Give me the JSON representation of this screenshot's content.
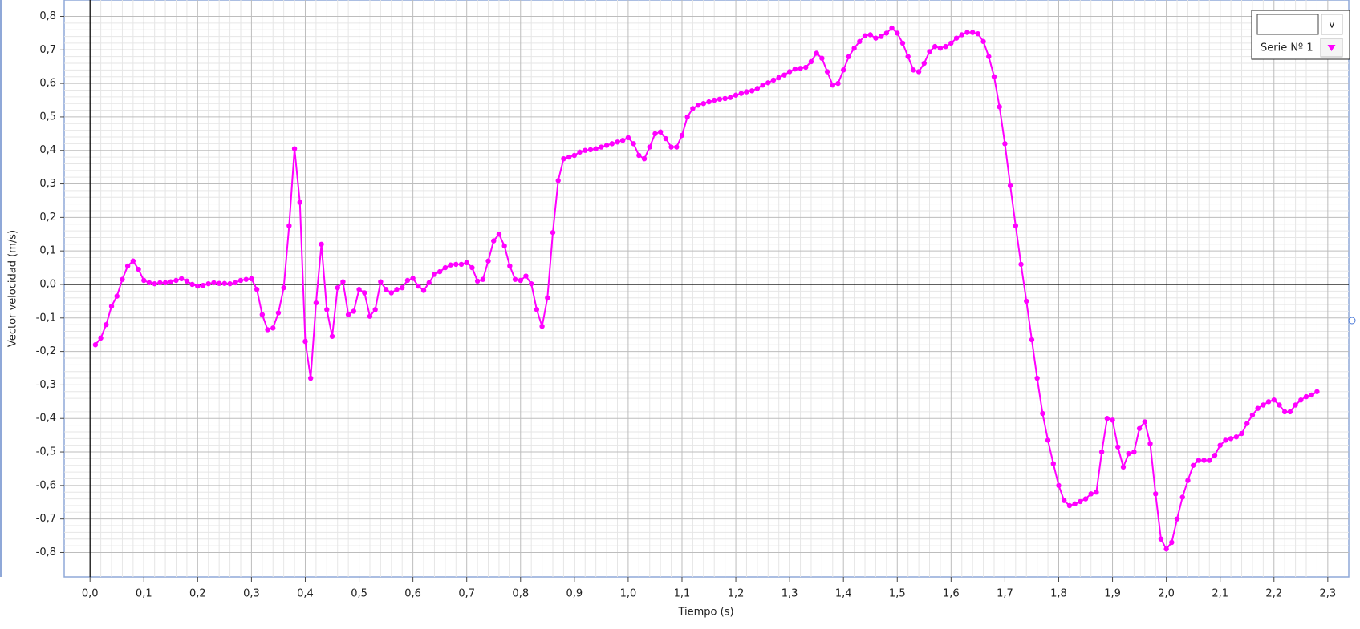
{
  "chart_data": {
    "type": "line",
    "x_label": "Tiempo (s)",
    "y_label": "Vector velocidad (m/s)",
    "xlim": [
      -0.048,
      2.339
    ],
    "ylim": [
      -0.873,
      0.849
    ],
    "grid": true,
    "xticks": [
      {
        "value": 0,
        "label": "0,0"
      },
      {
        "value": 0.1,
        "label": "0,1"
      },
      {
        "value": 0.2,
        "label": "0,2"
      },
      {
        "value": 0.3,
        "label": "0,3"
      },
      {
        "value": 0.4,
        "label": "0,4"
      },
      {
        "value": 0.5,
        "label": "0,5"
      },
      {
        "value": 0.6,
        "label": "0,6"
      },
      {
        "value": 0.7,
        "label": "0,7"
      },
      {
        "value": 0.8,
        "label": "0,8"
      },
      {
        "value": 0.9,
        "label": "0,9"
      },
      {
        "value": 1.0,
        "label": "1,0"
      },
      {
        "value": 1.1,
        "label": "1,1"
      },
      {
        "value": 1.2,
        "label": "1,2"
      },
      {
        "value": 1.3,
        "label": "1,3"
      },
      {
        "value": 1.4,
        "label": "1,4"
      },
      {
        "value": 1.5,
        "label": "1,5"
      },
      {
        "value": 1.6,
        "label": "1,6"
      },
      {
        "value": 1.7,
        "label": "1,7"
      },
      {
        "value": 1.8,
        "label": "1,8"
      },
      {
        "value": 1.9,
        "label": "1,9"
      },
      {
        "value": 2.0,
        "label": "2,0"
      },
      {
        "value": 2.1,
        "label": "2,1"
      },
      {
        "value": 2.2,
        "label": "2,2"
      },
      {
        "value": 2.3,
        "label": "2,3"
      }
    ],
    "yticks": [
      {
        "value": -0.8,
        "label": "-0,8"
      },
      {
        "value": -0.7,
        "label": "-0,7"
      },
      {
        "value": -0.6,
        "label": "-0,6"
      },
      {
        "value": -0.5,
        "label": "-0,5"
      },
      {
        "value": -0.4,
        "label": "-0,4"
      },
      {
        "value": -0.3,
        "label": "-0,3"
      },
      {
        "value": -0.2,
        "label": "-0,2"
      },
      {
        "value": -0.1,
        "label": "-0,1"
      },
      {
        "value": 0,
        "label": "0,0"
      },
      {
        "value": 0.1,
        "label": "0,1"
      },
      {
        "value": 0.2,
        "label": "0,2"
      },
      {
        "value": 0.3,
        "label": "0,3"
      },
      {
        "value": 0.4,
        "label": "0,4"
      },
      {
        "value": 0.5,
        "label": "0,5"
      },
      {
        "value": 0.6,
        "label": "0,6"
      },
      {
        "value": 0.7,
        "label": "0,7"
      },
      {
        "value": 0.8,
        "label": "0,8"
      }
    ],
    "x": [
      0.01,
      0.02,
      0.03,
      0.04,
      0.05,
      0.06,
      0.07,
      0.08,
      0.09,
      0.1,
      0.11,
      0.12,
      0.13,
      0.14,
      0.15,
      0.16,
      0.17,
      0.18,
      0.19,
      0.2,
      0.21,
      0.22,
      0.23,
      0.24,
      0.25,
      0.26,
      0.27,
      0.28,
      0.29,
      0.3,
      0.31,
      0.32,
      0.33,
      0.34,
      0.35,
      0.36,
      0.37,
      0.38,
      0.39,
      0.4,
      0.41,
      0.42,
      0.43,
      0.44,
      0.45,
      0.46,
      0.47,
      0.48,
      0.49,
      0.5,
      0.51,
      0.52,
      0.53,
      0.54,
      0.55,
      0.56,
      0.57,
      0.58,
      0.59,
      0.6,
      0.61,
      0.62,
      0.63,
      0.64,
      0.65,
      0.66,
      0.67,
      0.68,
      0.69,
      0.7,
      0.71,
      0.72,
      0.73,
      0.74,
      0.75,
      0.76,
      0.77,
      0.78,
      0.79,
      0.8,
      0.81,
      0.82,
      0.83,
      0.84,
      0.85,
      0.86,
      0.87,
      0.88,
      0.89,
      0.9,
      0.91,
      0.92,
      0.93,
      0.94,
      0.95,
      0.96,
      0.97,
      0.98,
      0.99,
      1.0,
      1.01,
      1.02,
      1.03,
      1.04,
      1.05,
      1.06,
      1.07,
      1.08,
      1.09,
      1.1,
      1.11,
      1.12,
      1.13,
      1.14,
      1.15,
      1.16,
      1.17,
      1.18,
      1.19,
      1.2,
      1.21,
      1.22,
      1.23,
      1.24,
      1.25,
      1.26,
      1.27,
      1.28,
      1.29,
      1.3,
      1.31,
      1.32,
      1.33,
      1.34,
      1.35,
      1.36,
      1.37,
      1.38,
      1.39,
      1.4,
      1.41,
      1.42,
      1.43,
      1.44,
      1.45,
      1.46,
      1.47,
      1.48,
      1.49,
      1.5,
      1.51,
      1.52,
      1.53,
      1.54,
      1.55,
      1.56,
      1.57,
      1.58,
      1.59,
      1.6,
      1.61,
      1.62,
      1.63,
      1.64,
      1.65,
      1.66,
      1.67,
      1.68,
      1.69,
      1.7,
      1.71,
      1.72,
      1.73,
      1.74,
      1.75,
      1.76,
      1.77,
      1.78,
      1.79,
      1.8,
      1.81,
      1.82,
      1.83,
      1.84,
      1.85,
      1.86,
      1.87,
      1.88,
      1.89,
      1.9,
      1.91,
      1.92,
      1.93,
      1.94,
      1.95,
      1.96,
      1.97,
      1.98,
      1.99,
      2.0,
      2.01,
      2.02,
      2.03,
      2.04,
      2.05,
      2.06,
      2.07,
      2.08,
      2.09,
      2.1,
      2.11,
      2.12,
      2.13,
      2.14,
      2.15,
      2.16,
      2.17,
      2.18,
      2.19,
      2.2,
      2.21,
      2.22,
      2.23,
      2.24,
      2.25,
      2.26,
      2.27,
      2.28
    ],
    "series": [
      {
        "name": "Serie Nº 1",
        "color": "#ff00ff",
        "values": [
          -0.18,
          -0.16,
          -0.12,
          -0.065,
          -0.035,
          0.015,
          0.055,
          0.07,
          0.045,
          0.012,
          0.005,
          0.002,
          0.005,
          0.005,
          0.008,
          0.012,
          0.017,
          0.01,
          0.0,
          -0.005,
          -0.003,
          0.002,
          0.005,
          0.003,
          0.003,
          0.002,
          0.005,
          0.012,
          0.015,
          0.017,
          -0.015,
          -0.09,
          -0.135,
          -0.13,
          -0.085,
          -0.01,
          0.175,
          0.405,
          0.245,
          -0.17,
          -0.28,
          -0.055,
          0.12,
          -0.075,
          -0.155,
          -0.01,
          0.008,
          -0.09,
          -0.08,
          -0.015,
          -0.025,
          -0.095,
          -0.075,
          0.008,
          -0.015,
          -0.025,
          -0.015,
          -0.01,
          0.012,
          0.018,
          -0.005,
          -0.018,
          0.005,
          0.03,
          0.038,
          0.05,
          0.058,
          0.06,
          0.06,
          0.065,
          0.05,
          0.01,
          0.015,
          0.07,
          0.13,
          0.15,
          0.115,
          0.055,
          0.015,
          0.012,
          0.025,
          0.002,
          -0.075,
          -0.125,
          -0.04,
          0.155,
          0.31,
          0.375,
          0.38,
          0.385,
          0.395,
          0.4,
          0.402,
          0.405,
          0.41,
          0.415,
          0.42,
          0.425,
          0.43,
          0.438,
          0.42,
          0.385,
          0.375,
          0.41,
          0.45,
          0.455,
          0.435,
          0.41,
          0.41,
          0.445,
          0.5,
          0.525,
          0.535,
          0.54,
          0.545,
          0.55,
          0.553,
          0.555,
          0.558,
          0.565,
          0.57,
          0.575,
          0.578,
          0.585,
          0.595,
          0.602,
          0.61,
          0.617,
          0.625,
          0.635,
          0.643,
          0.645,
          0.648,
          0.665,
          0.69,
          0.675,
          0.635,
          0.595,
          0.6,
          0.64,
          0.68,
          0.705,
          0.725,
          0.742,
          0.745,
          0.735,
          0.74,
          0.75,
          0.765,
          0.75,
          0.72,
          0.68,
          0.64,
          0.635,
          0.66,
          0.695,
          0.71,
          0.705,
          0.71,
          0.72,
          0.735,
          0.745,
          0.752,
          0.752,
          0.748,
          0.725,
          0.68,
          0.62,
          0.53,
          0.42,
          0.295,
          0.175,
          0.06,
          -0.05,
          -0.165,
          -0.28,
          -0.385,
          -0.465,
          -0.535,
          -0.6,
          -0.645,
          -0.66,
          -0.655,
          -0.648,
          -0.64,
          -0.625,
          -0.62,
          -0.5,
          -0.4,
          -0.405,
          -0.485,
          -0.545,
          -0.505,
          -0.5,
          -0.43,
          -0.41,
          -0.475,
          -0.625,
          -0.76,
          -0.79,
          -0.77,
          -0.7,
          -0.635,
          -0.585,
          -0.54,
          -0.525,
          -0.525,
          -0.525,
          -0.51,
          -0.48,
          -0.465,
          -0.46,
          -0.455,
          -0.445,
          -0.415,
          -0.39,
          -0.37,
          -0.36,
          -0.35,
          -0.345,
          -0.36,
          -0.38,
          -0.38,
          -0.36,
          -0.345,
          -0.335,
          -0.33,
          -0.32
        ]
      }
    ]
  },
  "ui": {
    "variable_button": "v"
  }
}
